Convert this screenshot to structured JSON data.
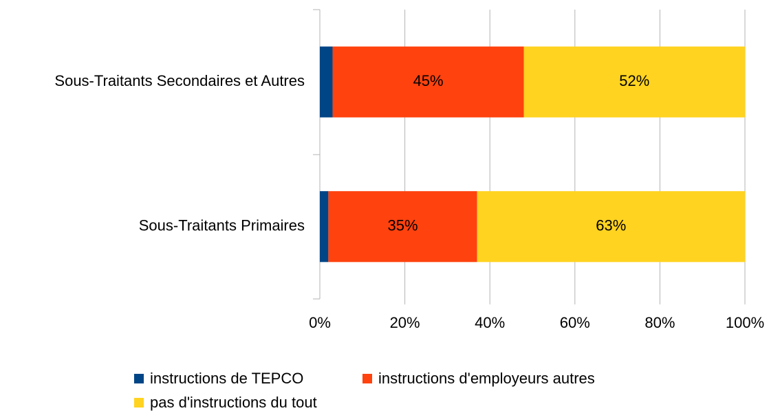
{
  "chart_data": {
    "type": "stacked_bar_horizontal",
    "categories": [
      "Sous-Traitants Secondaires et Autres",
      "Sous-Traitants Primaires"
    ],
    "series": [
      {
        "name": "instructions de TEPCO",
        "color": "#004586",
        "values": [
          3,
          2
        ]
      },
      {
        "name": "instructions d'employeurs autres",
        "color": "#ff420e",
        "values": [
          45,
          35
        ],
        "value_labels": [
          "45%",
          "35%"
        ]
      },
      {
        "name": "pas d'instructions du tout",
        "color": "#ffd320",
        "values": [
          52,
          63
        ],
        "value_labels": [
          "52%",
          "63%"
        ]
      }
    ],
    "xlim": [
      0,
      100
    ],
    "xticks": [
      {
        "value": 0,
        "label": "0%"
      },
      {
        "value": 20,
        "label": "20%"
      },
      {
        "value": 40,
        "label": "40%"
      },
      {
        "value": 60,
        "label": "60%"
      },
      {
        "value": 80,
        "label": "80%"
      },
      {
        "value": 100,
        "label": "100%"
      }
    ],
    "grid": true
  }
}
